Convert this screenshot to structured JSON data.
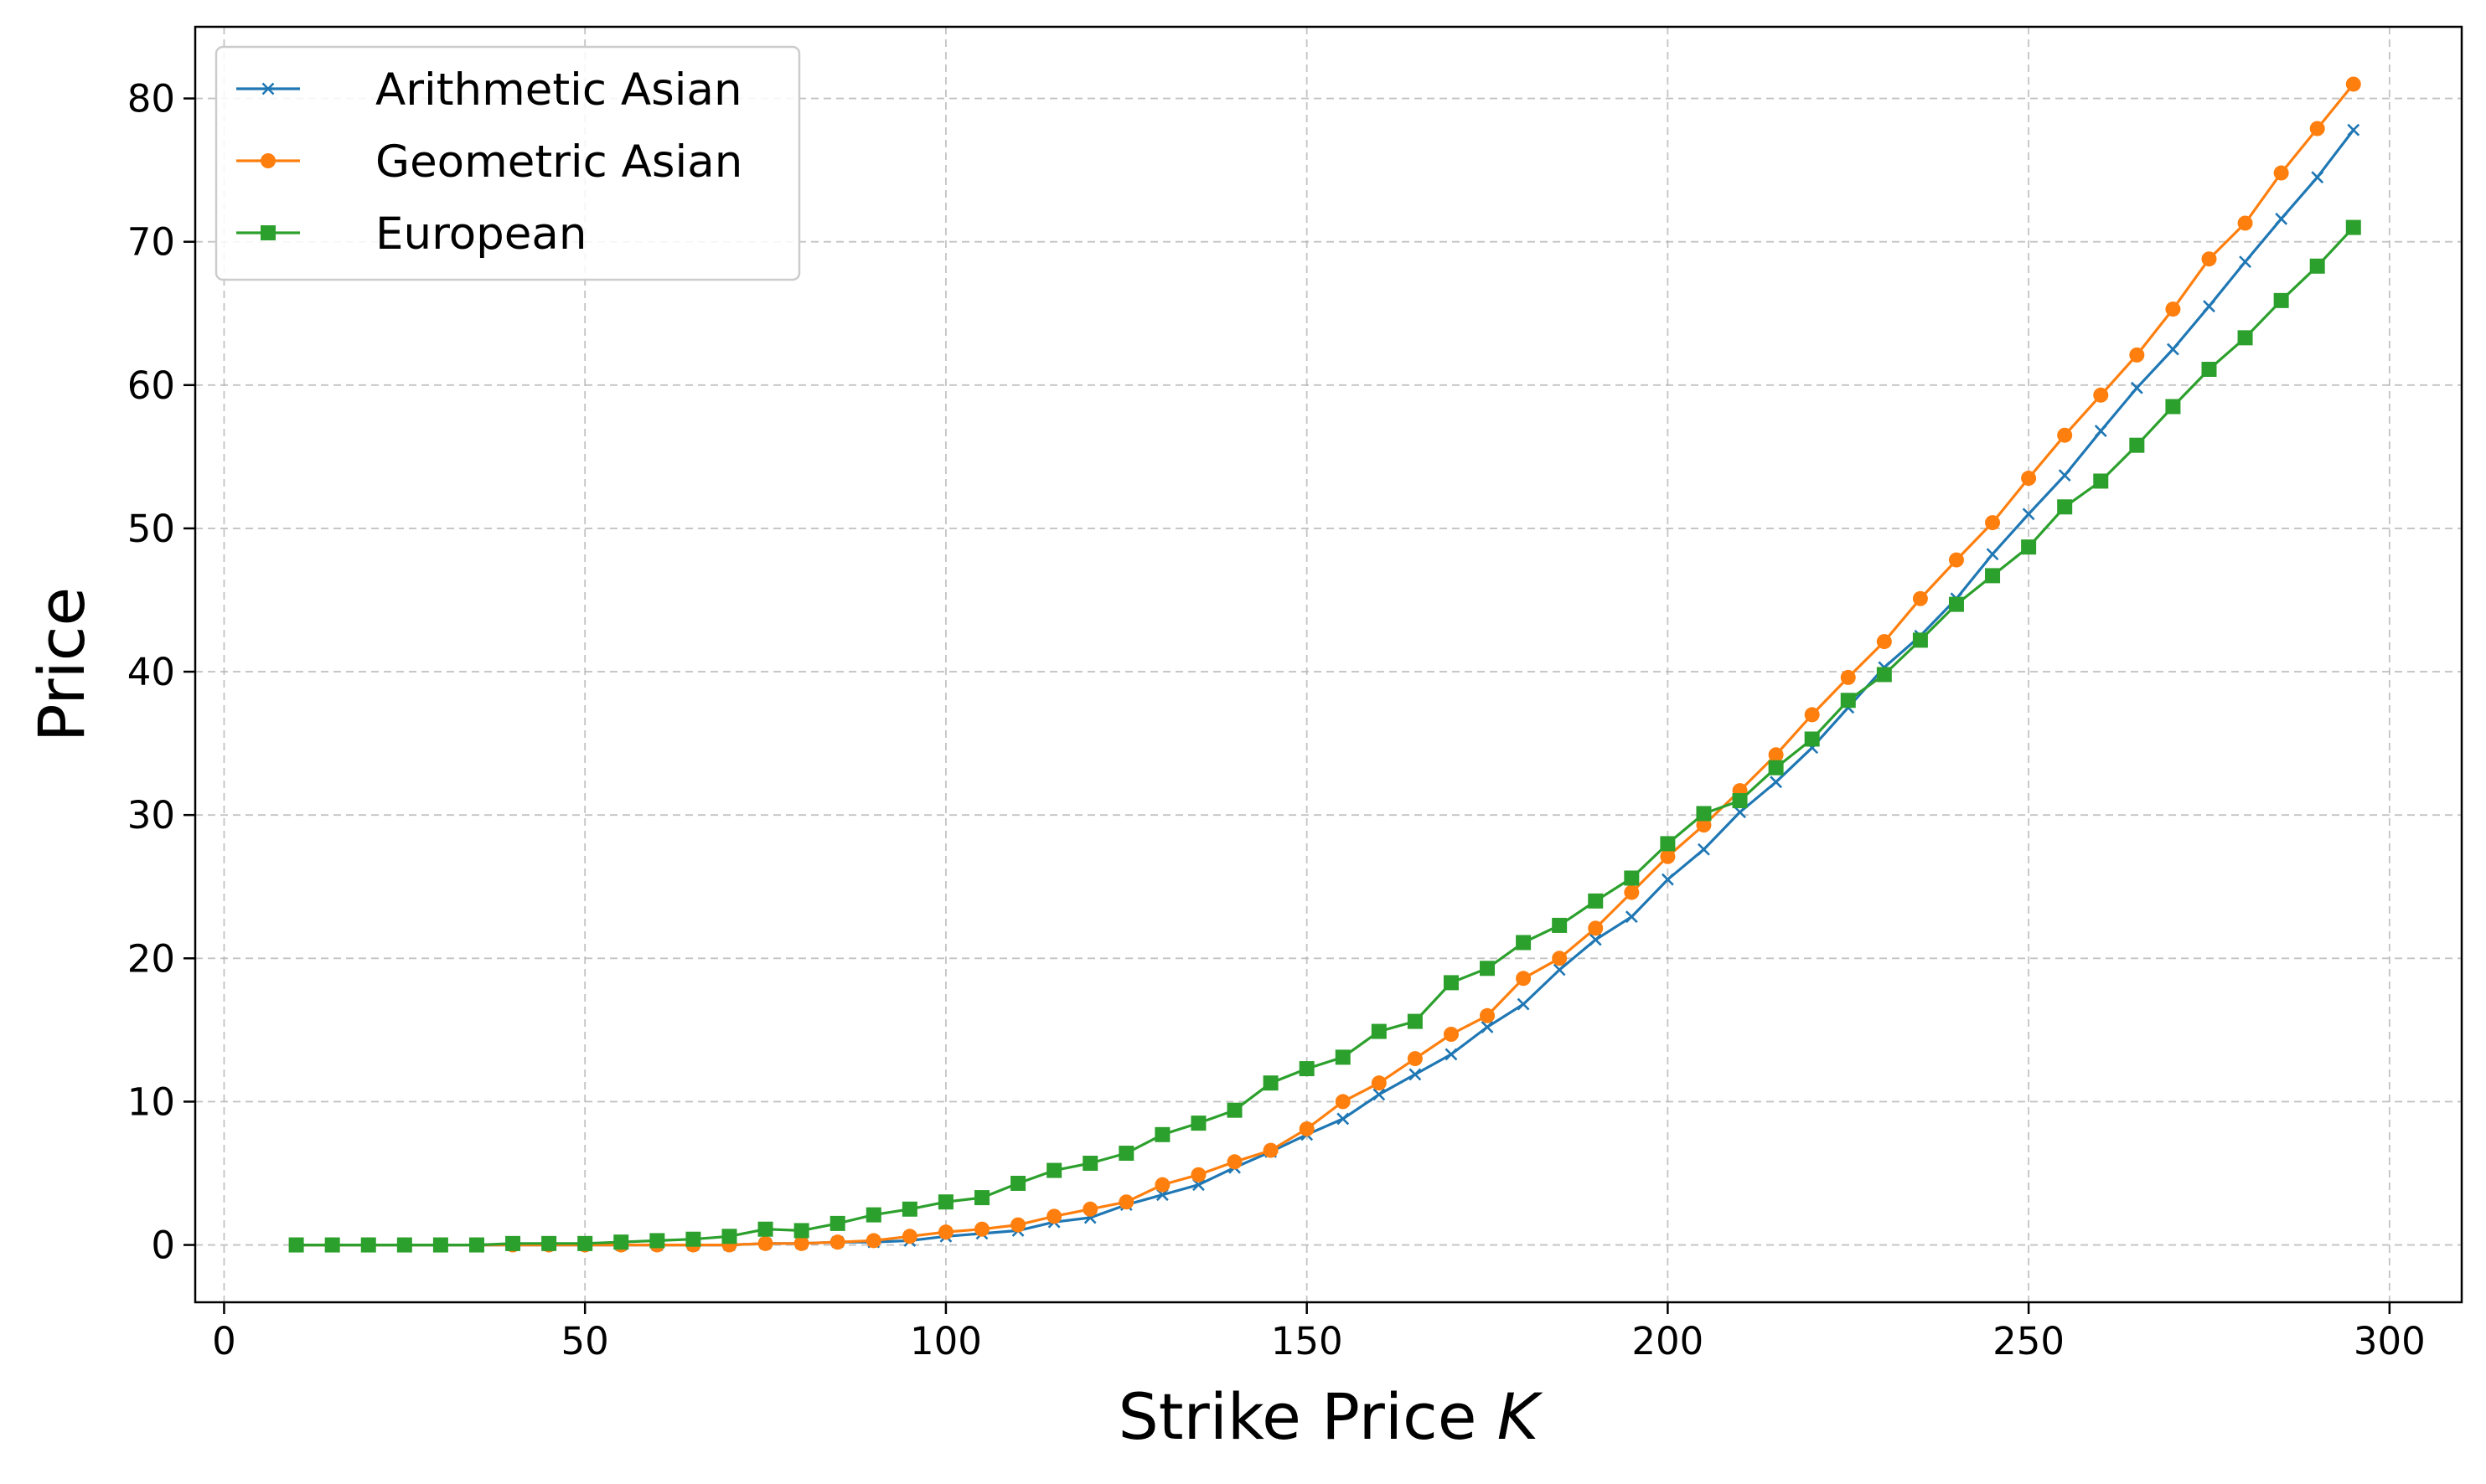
{
  "chart_data": {
    "type": "line",
    "title": "",
    "xlabel": "Strike Price",
    "xlabel_symbol": "K",
    "ylabel": "Price",
    "xlim": [
      -4,
      310
    ],
    "ylim": [
      -4,
      85
    ],
    "xticks": [
      0,
      50,
      100,
      150,
      200,
      250,
      300
    ],
    "xtick_labels": [
      "0",
      "50",
      "100",
      "150",
      "200",
      "250",
      "300"
    ],
    "yticks": [
      0,
      10,
      20,
      30,
      40,
      50,
      60,
      70,
      80
    ],
    "ytick_labels": [
      "0",
      "10",
      "20",
      "30",
      "40",
      "50",
      "60",
      "70",
      "80"
    ],
    "grid": true,
    "legend_position": "top-left",
    "x": [
      10,
      15,
      20,
      25,
      30,
      35,
      40,
      45,
      50,
      55,
      60,
      65,
      70,
      75,
      80,
      85,
      90,
      95,
      100,
      105,
      110,
      115,
      120,
      125,
      130,
      135,
      140,
      145,
      150,
      155,
      160,
      165,
      170,
      175,
      180,
      185,
      190,
      195,
      200,
      205,
      210,
      215,
      220,
      225,
      230,
      235,
      240,
      245,
      250,
      255,
      260,
      265,
      270,
      275,
      280,
      285,
      290,
      295
    ],
    "series": [
      {
        "name": "Arithmetic Asian",
        "color": "#1f77b4",
        "marker": "x",
        "values": [
          0,
          0,
          0,
          0,
          0,
          0,
          0,
          0,
          0,
          0,
          0,
          0,
          0,
          0.1,
          0.1,
          0.2,
          0.2,
          0.3,
          0.6,
          0.8,
          1.0,
          1.6,
          1.9,
          2.8,
          3.5,
          4.2,
          5.4,
          6.5,
          7.7,
          8.8,
          10.5,
          11.9,
          13.3,
          15.2,
          16.8,
          19.2,
          21.3,
          22.9,
          25.5,
          27.6,
          30.2,
          32.3,
          34.7,
          37.5,
          40.3,
          42.5,
          45.1,
          48.2,
          51.0,
          53.7,
          56.8,
          59.8,
          62.5,
          65.5,
          68.6,
          71.6,
          74.5,
          77.8
        ]
      },
      {
        "name": "Geometric Asian",
        "color": "#ff7f0e",
        "marker": "circle",
        "values": [
          0,
          0,
          0,
          0,
          0,
          0,
          0,
          0,
          0,
          0,
          0,
          0,
          0,
          0.1,
          0.1,
          0.2,
          0.3,
          0.6,
          0.9,
          1.1,
          1.4,
          2.0,
          2.5,
          3.0,
          4.2,
          4.9,
          5.8,
          6.6,
          8.1,
          10.0,
          11.3,
          13.0,
          14.7,
          16.0,
          18.6,
          20.0,
          22.1,
          24.6,
          27.1,
          29.3,
          31.7,
          34.2,
          37.0,
          39.6,
          42.1,
          45.1,
          47.8,
          50.4,
          53.5,
          56.5,
          59.3,
          62.1,
          65.3,
          68.8,
          71.3,
          74.8,
          77.9,
          81.0
        ]
      },
      {
        "name": "European",
        "color": "#2ca02c",
        "marker": "square",
        "values": [
          0,
          0,
          0,
          0,
          0,
          0,
          0.1,
          0.1,
          0.1,
          0.2,
          0.3,
          0.4,
          0.6,
          1.1,
          1.0,
          1.5,
          2.1,
          2.5,
          3.0,
          3.3,
          4.3,
          5.2,
          5.7,
          6.4,
          7.7,
          8.5,
          9.4,
          11.3,
          12.3,
          13.1,
          14.9,
          15.6,
          18.3,
          19.3,
          21.1,
          22.3,
          24.0,
          25.6,
          28.0,
          30.1,
          31.0,
          33.3,
          35.3,
          38.0,
          39.8,
          42.2,
          44.7,
          46.7,
          48.7,
          51.5,
          53.3,
          55.8,
          58.5,
          61.1,
          63.3,
          65.9,
          68.3,
          71.0
        ]
      }
    ]
  }
}
